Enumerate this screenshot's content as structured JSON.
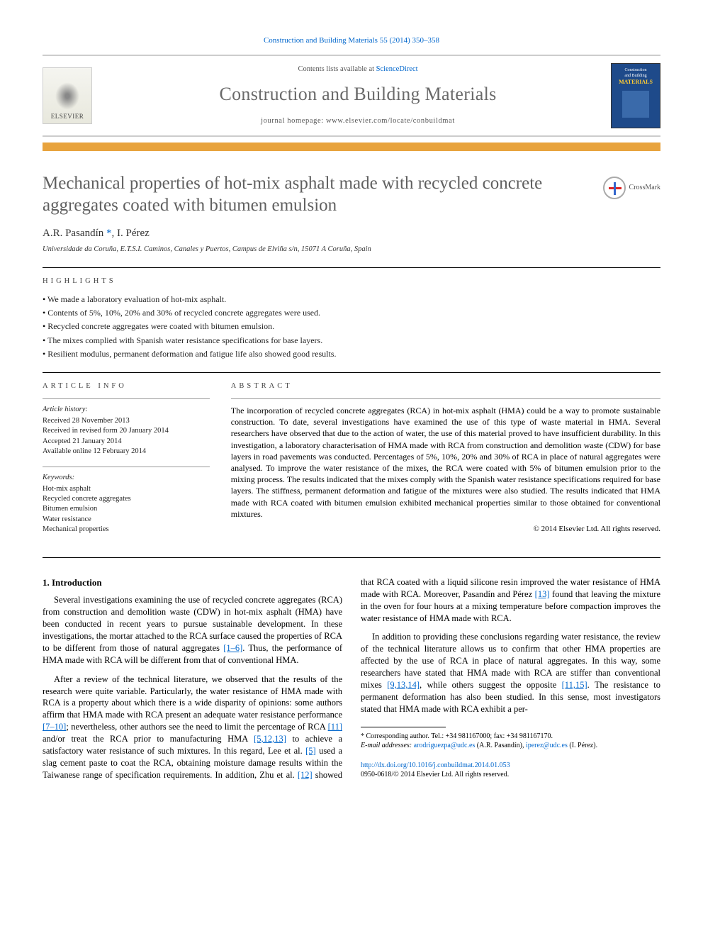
{
  "citation": "Construction and Building Materials 55 (2014) 350–358",
  "header": {
    "contents_prefix": "Contents lists available at ",
    "contents_link": "ScienceDirect",
    "journal_name": "Construction and Building Materials",
    "homepage_prefix": "journal homepage: ",
    "homepage_url": "www.elsevier.com/locate/conbuildmat",
    "elsevier_label": "ELSEVIER",
    "cover_words": [
      "Construction",
      "and Building"
    ],
    "cover_emph": "MATERIALS"
  },
  "crossmark_label": "CrossMark",
  "article": {
    "title": "Mechanical properties of hot-mix asphalt made with recycled concrete aggregates coated with bitumen emulsion",
    "authors_html": "A.R. Pasandín *, I. Pérez",
    "affiliation": "Universidade da Coruña, E.T.S.I. Caminos, Canales y Puertos, Campus de Elviña s/n, 15071 A Coruña, Spain"
  },
  "labels": {
    "highlights": "highlights",
    "article_info": "article info",
    "abstract": "abstract"
  },
  "highlights": [
    "We made a laboratory evaluation of hot-mix asphalt.",
    "Contents of 5%, 10%, 20% and 30% of recycled concrete aggregates were used.",
    "Recycled concrete aggregates were coated with bitumen emulsion.",
    "The mixes complied with Spanish water resistance specifications for base layers.",
    "Resilient modulus, permanent deformation and fatigue life also showed good results."
  ],
  "article_info": {
    "history_label": "Article history:",
    "history": [
      "Received 28 November 2013",
      "Received in revised form 20 January 2014",
      "Accepted 21 January 2014",
      "Available online 12 February 2014"
    ],
    "keywords_label": "Keywords:",
    "keywords": [
      "Hot-mix asphalt",
      "Recycled concrete aggregates",
      "Bitumen emulsion",
      "Water resistance",
      "Mechanical properties"
    ]
  },
  "abstract_text": "The incorporation of recycled concrete aggregates (RCA) in hot-mix asphalt (HMA) could be a way to promote sustainable construction. To date, several investigations have examined the use of this type of waste material in HMA. Several researchers have observed that due to the action of water, the use of this material proved to have insufficient durability. In this investigation, a laboratory characterisation of HMA made with RCA from construction and demolition waste (CDW) for base layers in road pavements was conducted. Percentages of 5%, 10%, 20% and 30% of RCA in place of natural aggregates were analysed. To improve the water resistance of the mixes, the RCA were coated with 5% of bitumen emulsion prior to the mixing process. The results indicated that the mixes comply with the Spanish water resistance specifications required for base layers. The stiffness, permanent deformation and fatigue of the mixtures were also studied. The results indicated that HMA made with RCA coated with bitumen emulsion exhibited mechanical properties similar to those obtained for conventional mixtures.",
  "abstract_copyright": "© 2014 Elsevier Ltd. All rights reserved.",
  "intro": {
    "heading": "1. Introduction",
    "p1_a": "Several investigations examining the use of recycled concrete aggregates (RCA) from construction and demolition waste (CDW) in hot-mix asphalt (HMA) have been conducted in recent years to pursue sustainable development. In these investigations, the mortar attached to the RCA surface caused the properties of RCA to be different from those of natural aggregates ",
    "p1_ref1": "[1–6]",
    "p1_b": ". Thus, the performance of HMA made with RCA will be different from that of conventional HMA.",
    "p2": "After a review of the technical literature, we observed that the results of the research were quite variable. Particularly, the water resistance of HMA made with RCA is a property about which there is a wide disparity of opinions: some authors affirm that HMA made with RCA present an adequate water resistance performance ",
    "p2c_ref1": "[7–10]",
    "p2c_a": "; nevertheless, other authors see the need to limit the percentage of RCA ",
    "p2c_ref2": "[11]",
    "p2c_b": " and/or treat the RCA prior to manufacturing HMA ",
    "p2c_ref3": "[5,12,13]",
    "p2c_c": " to achieve a satisfactory water resistance of such mixtures. In this regard, Lee et al. ",
    "p2c_ref4": "[5]",
    "p2c_d": " used a slag cement paste to coat the RCA, obtaining moisture damage results within the Taiwanese range of specification requirements. In addition, Zhu et al. ",
    "p2c_ref5": "[12]",
    "p2c_e": " showed that RCA coated with a liquid silicone resin improved the water resistance of HMA made with RCA. Moreover, Pasandín and Pérez ",
    "p2c_ref6": "[13]",
    "p2c_f": " found that leaving the mixture in the oven for four hours at a mixing temperature before compaction improves the water resistance of HMA made with RCA.",
    "p3_a": "In addition to providing these conclusions regarding water resistance, the review of the technical literature allows us to confirm that other HMA properties are affected by the use of RCA in place of natural aggregates. In this way, some researchers have stated that HMA made with RCA are stiffer than conventional mixes ",
    "p3_ref1": "[9,13,14]",
    "p3_b": ", while others suggest the opposite ",
    "p3_ref2": "[11,15]",
    "p3_c": ". The resistance to permanent deformation has also been studied. In this sense, most investigators stated that HMA made with RCA exhibit a per-"
  },
  "footnotes": {
    "corr": "* Corresponding author. Tel.: +34 981167000; fax: +34 981167170.",
    "emails_label": "E-mail addresses: ",
    "email1": "arodriguezpa@udc.es",
    "email1_who": " (A.R. Pasandín), ",
    "email2": "iperez@udc.es",
    "email2_who": " (I. Pérez)."
  },
  "doi": {
    "url": "http://dx.doi.org/10.1016/j.conbuildmat.2014.01.053",
    "issn_line": "0950-0618/© 2014 Elsevier Ltd. All rights reserved."
  },
  "colors": {
    "link": "#0066cc",
    "orange_bar": "#e8a33d",
    "title_gray": "#606060",
    "journal_gray": "#696969",
    "cover_bg": "#1e4a8a",
    "cover_accent": "#ffcc33"
  }
}
